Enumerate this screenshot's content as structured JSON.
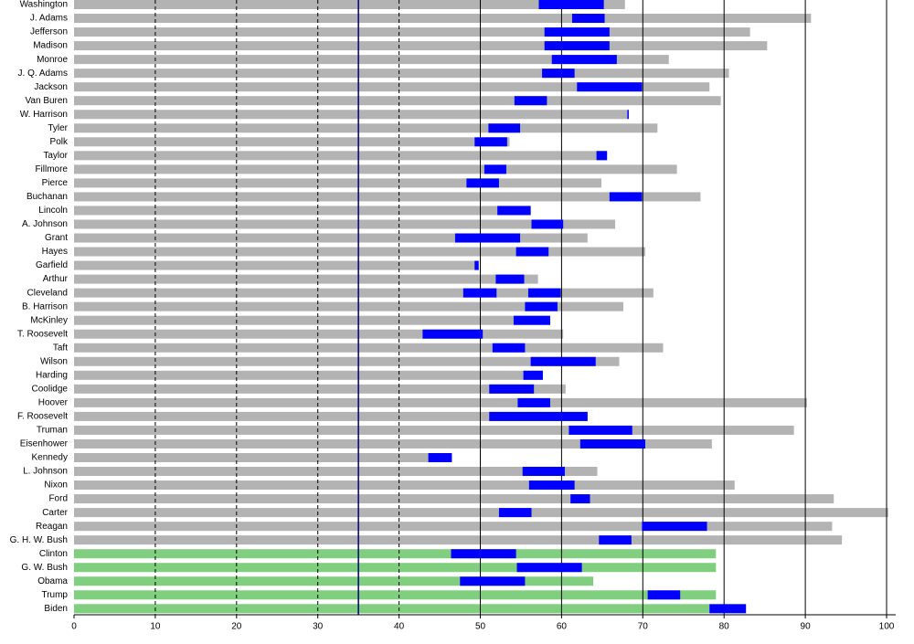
{
  "chart_data": {
    "type": "range-bar",
    "categories": [
      "Washington",
      "J. Adams",
      "Jefferson",
      "Madison",
      "Monroe",
      "J. Q. Adams",
      "Jackson",
      "Van Buren",
      "W. Harrison",
      "Tyler",
      "Polk",
      "Taylor",
      "Fillmore",
      "Pierce",
      "Buchanan",
      "Lincoln",
      "A. Johnson",
      "Grant",
      "Hayes",
      "Garfield",
      "Arthur",
      "Cleveland",
      "B. Harrison",
      "McKinley",
      "T. Roosevelt",
      "Taft",
      "Wilson",
      "Harding",
      "Coolidge",
      "Hoover",
      "F. Roosevelt",
      "Truman",
      "Eisenhower",
      "Kennedy",
      "L. Johnson",
      "Nixon",
      "Ford",
      "Carter",
      "Reagan",
      "G. H. W. Bush",
      "Clinton",
      "G. W. Bush",
      "Obama",
      "Trump",
      "Biden"
    ],
    "series": [
      {
        "color": "#b3b3b3",
        "values": [
          67.8,
          90.7,
          83.2,
          85.3,
          73.2,
          80.6,
          78.2,
          79.6,
          68.2,
          71.8,
          53.6,
          65.6,
          74.2,
          64.9,
          77.1,
          56.2,
          66.6,
          63.2,
          70.3,
          49.8,
          57.1,
          71.3,
          67.6,
          58.6,
          60.2,
          72.5,
          67.1,
          57.7,
          60.5,
          90.2,
          63.2,
          88.6,
          78.5,
          46.5,
          64.4,
          81.3,
          93.5,
          100.2,
          93.3,
          94.5,
          null,
          null,
          null,
          null,
          null
        ]
      },
      {
        "color": "#7fcf7f",
        "values": [
          null,
          null,
          null,
          null,
          null,
          null,
          null,
          null,
          null,
          null,
          null,
          null,
          null,
          null,
          null,
          null,
          null,
          null,
          null,
          null,
          null,
          null,
          null,
          null,
          null,
          null,
          null,
          null,
          null,
          null,
          null,
          null,
          null,
          null,
          null,
          null,
          null,
          null,
          null,
          null,
          79.0,
          79.0,
          63.9,
          79.0,
          78.2
        ]
      }
    ],
    "terms": [
      {
        "color": "#0000ff",
        "start": [
          57.2,
          61.3,
          57.9,
          57.9,
          58.8,
          57.6,
          61.9,
          54.2,
          68.1,
          51.0,
          49.3,
          64.3,
          50.5,
          48.3,
          65.9,
          52.1,
          56.3,
          46.9,
          54.4,
          49.3,
          51.9,
          47.9,
          55.5,
          54.1,
          42.9,
          51.5,
          56.2,
          55.3,
          51.1,
          54.6,
          51.1,
          60.9,
          62.3,
          43.6,
          55.2,
          56.0,
          61.1,
          52.3,
          69.9,
          64.6,
          46.4,
          54.5,
          47.5,
          70.6,
          78.2
        ],
        "end": [
          65.2,
          65.3,
          65.9,
          65.9,
          66.8,
          61.6,
          69.9,
          58.2,
          68.2,
          54.9,
          53.3,
          65.6,
          53.2,
          52.3,
          69.9,
          56.2,
          60.2,
          54.9,
          58.4,
          49.8,
          55.4,
          52.0,
          59.5,
          58.6,
          50.3,
          55.5,
          64.2,
          57.7,
          56.6,
          58.6,
          63.2,
          68.7,
          70.3,
          46.5,
          60.4,
          61.6,
          63.5,
          56.3,
          77.9,
          68.6,
          54.4,
          62.5,
          55.5,
          74.6,
          82.7
        ]
      },
      {
        "color": "#0000ff",
        "start": [
          null,
          null,
          null,
          null,
          null,
          null,
          null,
          null,
          null,
          null,
          null,
          null,
          null,
          null,
          null,
          null,
          null,
          null,
          null,
          null,
          null,
          55.9,
          null,
          null,
          null,
          null,
          null,
          null,
          null,
          null,
          null,
          null,
          null,
          null,
          null,
          null,
          null,
          null,
          null,
          null,
          null,
          null,
          null,
          null,
          null
        ],
        "end": [
          null,
          null,
          null,
          null,
          null,
          null,
          null,
          null,
          null,
          null,
          null,
          null,
          null,
          null,
          null,
          null,
          null,
          null,
          null,
          null,
          null,
          59.9,
          null,
          null,
          null,
          null,
          null,
          null,
          null,
          null,
          null,
          null,
          null,
          null,
          null,
          null,
          null,
          null,
          null,
          null,
          null,
          null,
          null,
          null,
          null
        ]
      }
    ],
    "reference_line": {
      "value": 35,
      "color": "#000080"
    },
    "xlim": [
      0,
      100
    ],
    "xticks": [
      0,
      10,
      20,
      30,
      40,
      50,
      60,
      70,
      80,
      90,
      100
    ],
    "grid": true
  }
}
